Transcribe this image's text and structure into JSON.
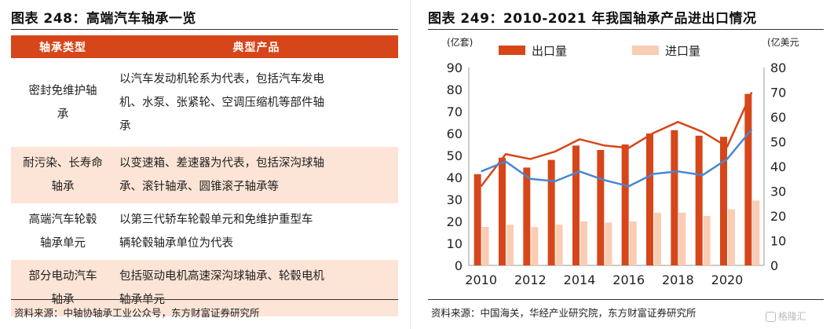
{
  "left": {
    "title": "图表 248：高端汽车轴承一览",
    "table": {
      "headers": [
        "轴承类型",
        "典型产品"
      ],
      "rows": [
        {
          "type": [
            "密封免维护轴",
            "承"
          ],
          "product": [
            "以汽车发动机轮系为代表，包括汽车发电",
            "机、水泵、张紧轮、空调压缩机等部件轴",
            "承"
          ]
        },
        {
          "type": [
            "耐污染、长寿命",
            "轴承"
          ],
          "product": [
            "以变速箱、差速器为代表，包括深沟球轴",
            "承、滚针轴承、圆锥滚子轴承等"
          ]
        },
        {
          "type": [
            "高端汽车轮毂",
            "轴承单元"
          ],
          "product": [
            "以第三代轿车轮毂单元和免维护重型车",
            "辆轮毂轴承单位为代表"
          ]
        },
        {
          "type": [
            "部分电动汽车",
            "轴承"
          ],
          "product": [
            "包括驱动电机高速深沟球轴承、轮毂电机",
            "轴承单元"
          ]
        }
      ]
    },
    "source": "资料来源：中轴协轴承工业公众号，东方财富证券研究所"
  },
  "right": {
    "title": "图表 249：2010-2021 年我国轴承产品进出口情况",
    "source": "资料来源：中国海关，华经产业研究院，东方财富证券研究所"
  },
  "watermark": "格隆汇",
  "colors": {
    "accent": "#D6461A",
    "light": "#FCE4D6",
    "export": "#D6461A",
    "import": "#F9CDB3",
    "blue_line": "#4A86D0"
  },
  "chart_data": {
    "type": "bar",
    "x": [
      2010,
      2011,
      2012,
      2013,
      2014,
      2015,
      2016,
      2017,
      2018,
      2019,
      2020,
      2021
    ],
    "left_unit": "(亿套)",
    "right_unit": "(亿美元",
    "left_ylim": [
      0,
      90
    ],
    "left_ticks": [
      0,
      10,
      20,
      30,
      40,
      50,
      60,
      70,
      80,
      90
    ],
    "right_ylim": [
      0,
      80
    ],
    "right_ticks": [
      0,
      10,
      20,
      30,
      40,
      50,
      60,
      70,
      80
    ],
    "xticks": [
      2010,
      2012,
      2014,
      2016,
      2018,
      2020
    ],
    "series": [
      {
        "name": "出口量",
        "kind": "bar",
        "axis": "left",
        "values": [
          41.5,
          49,
          44.5,
          48,
          54.5,
          52.5,
          55,
          60,
          61.5,
          59,
          58.5,
          78
        ]
      },
      {
        "name": "进口量",
        "kind": "bar",
        "axis": "left",
        "values": [
          17.5,
          18.5,
          17.5,
          18.5,
          20,
          19.5,
          20,
          24,
          24,
          22.5,
          25.5,
          29.5
        ]
      },
      {
        "kind": "line",
        "axis": "right",
        "color": "#D6461A",
        "values": [
          32,
          45,
          43,
          46,
          51,
          48.5,
          47.5,
          53.5,
          58,
          54,
          48,
          70
        ]
      },
      {
        "kind": "line",
        "axis": "right",
        "color": "#4A86D0",
        "values": [
          38,
          42,
          35,
          34,
          38,
          34.5,
          32,
          37,
          38,
          36.5,
          43,
          55
        ]
      }
    ],
    "legend_position": "top"
  }
}
